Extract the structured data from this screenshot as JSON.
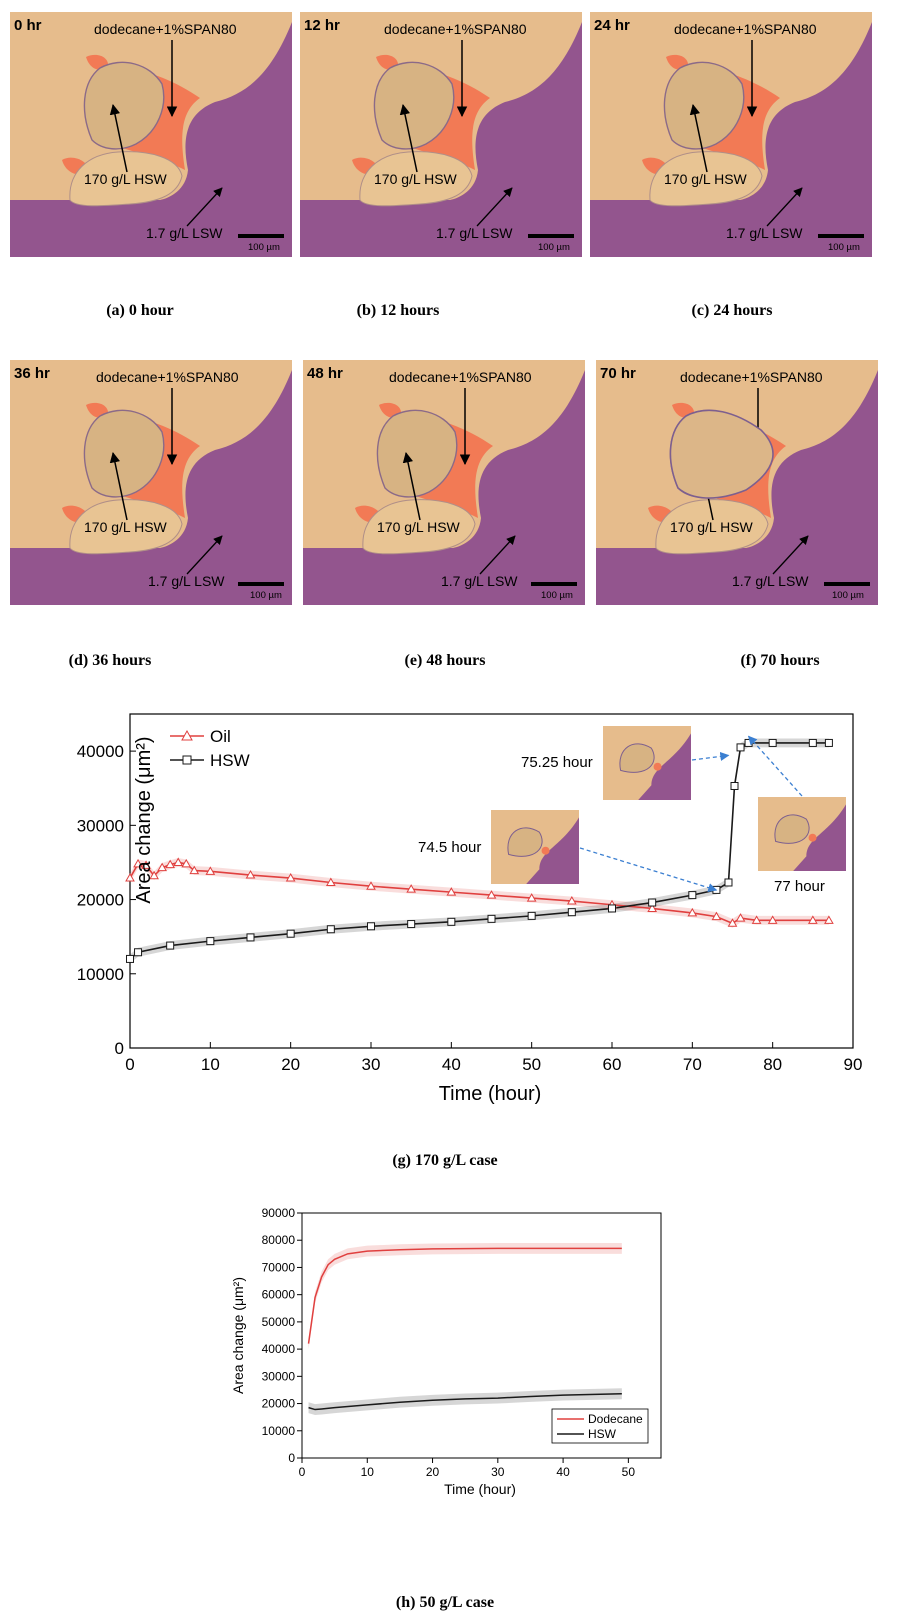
{
  "panels": [
    {
      "time": "0 hr",
      "caption": "(a) 0 hour"
    },
    {
      "time": "12 hr",
      "caption": "(b) 12 hours"
    },
    {
      "time": "24 hr",
      "caption": "(c) 24 hours"
    },
    {
      "time": "36 hr",
      "caption": "(d) 36 hours"
    },
    {
      "time": "48 hr",
      "caption": "(e) 48 hours"
    },
    {
      "time": "70 hr",
      "caption": "(f) 70 hours"
    }
  ],
  "annotations": {
    "oil": "dodecane+1%SPAN80",
    "hsw": "170 g/L HSW",
    "lsw": "1.7 g/L LSW",
    "scale": "100 µm"
  },
  "colors": {
    "grain": "#e6bc8c",
    "lsw": "#93558e",
    "oil": "#f27a55",
    "oil_series": "#e0403f",
    "hsw_series": "#1a1a1a"
  },
  "chart_g": {
    "caption": "(g) 170 g/L case",
    "xlabel": "Time (hour)",
    "ylabel": "Area change (μm²)",
    "xticks": [
      0,
      10,
      20,
      30,
      40,
      50,
      60,
      70,
      80,
      90
    ],
    "yticks": [
      0,
      10000,
      20000,
      30000,
      40000
    ],
    "inset_labels": [
      "74.5 hour",
      "75.25 hour",
      "77 hour"
    ]
  },
  "chart_h": {
    "caption": "(h) 50 g/L case",
    "xlabel": "Time (hour)",
    "ylabel": "Area change (μm²)",
    "xticks": [
      0,
      10,
      20,
      30,
      40,
      50
    ],
    "yticks": [
      0,
      10000,
      20000,
      30000,
      40000,
      50000,
      60000,
      70000,
      80000,
      90000
    ]
  },
  "chart_data": [
    {
      "type": "line",
      "title": "(g) 170 g/L case",
      "xlabel": "Time (hour)",
      "ylabel": "Area change (μm²)",
      "xlim": [
        0,
        90
      ],
      "ylim": [
        0,
        45000
      ],
      "legend": "top-left",
      "series": [
        {
          "name": "Oil",
          "marker": "triangle",
          "color": "#e0403f",
          "x": [
            0,
            1,
            2,
            3,
            4,
            5,
            6,
            7,
            8,
            10,
            15,
            20,
            25,
            30,
            35,
            40,
            45,
            50,
            55,
            60,
            65,
            70,
            73,
            75,
            76,
            78,
            80,
            85,
            87
          ],
          "y": [
            22900,
            24800,
            24600,
            23200,
            24300,
            24700,
            25000,
            24800,
            23900,
            23800,
            23300,
            22900,
            22300,
            21800,
            21400,
            21000,
            20600,
            20200,
            19800,
            19300,
            18800,
            18200,
            17700,
            16800,
            17500,
            17200,
            17200,
            17200,
            17200
          ]
        },
        {
          "name": "HSW",
          "marker": "square",
          "color": "#1a1a1a",
          "x": [
            0,
            1,
            5,
            10,
            15,
            20,
            25,
            30,
            35,
            40,
            45,
            50,
            55,
            60,
            65,
            70,
            73,
            74.5,
            75.25,
            76,
            77,
            80,
            85,
            87
          ],
          "y": [
            12000,
            12900,
            13800,
            14400,
            14900,
            15400,
            16000,
            16400,
            16700,
            17000,
            17400,
            17800,
            18300,
            18800,
            19600,
            20600,
            21300,
            22300,
            35300,
            40500,
            41100,
            41100,
            41100,
            41100
          ]
        }
      ],
      "annotations": [
        "74.5 hour",
        "75.25 hour",
        "77 hour"
      ]
    },
    {
      "type": "line",
      "title": "(h) 50 g/L case",
      "xlabel": "Time (hour)",
      "ylabel": "Area change (μm²)",
      "xlim": [
        0,
        55
      ],
      "ylim": [
        0,
        90000
      ],
      "legend": "bottom-right",
      "series": [
        {
          "name": "Dodecane",
          "color": "#e0403f",
          "x": [
            1,
            2,
            3,
            4,
            5,
            7,
            10,
            15,
            20,
            30,
            40,
            49
          ],
          "y": [
            42000,
            59000,
            66500,
            71000,
            73000,
            75000,
            76000,
            76500,
            76800,
            77000,
            77000,
            77000
          ]
        },
        {
          "name": "HSW",
          "color": "#1a1a1a",
          "x": [
            1,
            2,
            3,
            5,
            10,
            15,
            20,
            25,
            30,
            35,
            40,
            49
          ],
          "y": [
            18500,
            17800,
            18000,
            18500,
            19500,
            20500,
            21200,
            21700,
            22000,
            22600,
            23100,
            23600
          ]
        }
      ]
    }
  ]
}
